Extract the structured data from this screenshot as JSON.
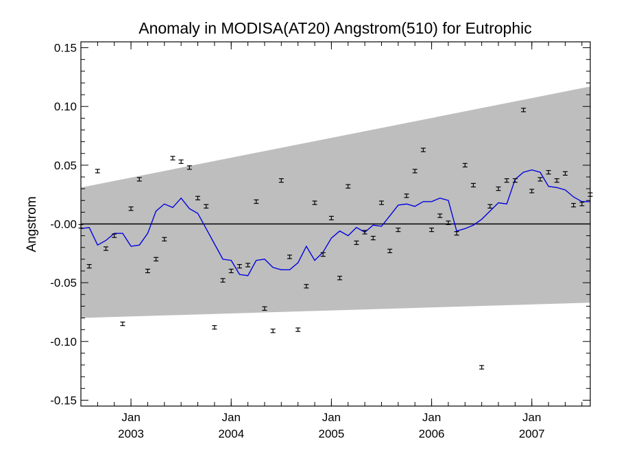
{
  "chart_data": {
    "type": "scatter",
    "title": "Anomaly in MODISA(AT20) Angstrom(510) for Eutrophic",
    "xlabel": "",
    "ylabel": "Angstrom",
    "xlim": [
      "2002-07",
      "2007-08"
    ],
    "ylim": [
      -0.155,
      0.155
    ],
    "yticks": [
      {
        "value": 0.15,
        "label": "0.15"
      },
      {
        "value": 0.1,
        "label": "0.10"
      },
      {
        "value": 0.05,
        "label": "0.05"
      },
      {
        "value": 0.0,
        "label": "-0.00"
      },
      {
        "value": -0.05,
        "label": "-0.05"
      },
      {
        "value": -0.1,
        "label": "-0.10"
      },
      {
        "value": -0.15,
        "label": "-0.15"
      }
    ],
    "xticks": [
      {
        "date": "2003-01",
        "month_label": "Jan",
        "year_label": "2003"
      },
      {
        "date": "2004-01",
        "month_label": "Jan",
        "year_label": "2004"
      },
      {
        "date": "2005-01",
        "month_label": "Jan",
        "year_label": "2005"
      },
      {
        "date": "2006-01",
        "month_label": "Jan",
        "year_label": "2006"
      },
      {
        "date": "2007-01",
        "month_label": "Jan",
        "year_label": "2007"
      }
    ],
    "envelope": {
      "upper": [
        {
          "date": "2002-07",
          "y": 0.031
        },
        {
          "date": "2007-08",
          "y": 0.117
        }
      ],
      "lower": [
        {
          "date": "2002-07",
          "y": -0.08
        },
        {
          "date": "2007-08",
          "y": -0.067
        }
      ],
      "color": "#bebebe"
    },
    "zero_line": {
      "y": 0.0,
      "color": "#000000"
    },
    "series": [
      {
        "kind": "points",
        "color": "#000000",
        "error": 0.0015,
        "points": [
          {
            "date": "2002-07",
            "y": -0.002
          },
          {
            "date": "2002-08",
            "y": -0.036
          },
          {
            "date": "2002-09",
            "y": 0.045
          },
          {
            "date": "2002-10",
            "y": -0.021
          },
          {
            "date": "2002-11",
            "y": -0.01
          },
          {
            "date": "2002-12",
            "y": -0.085
          },
          {
            "date": "2003-01",
            "y": 0.013
          },
          {
            "date": "2003-02",
            "y": 0.038
          },
          {
            "date": "2003-03",
            "y": -0.04
          },
          {
            "date": "2003-04",
            "y": -0.03
          },
          {
            "date": "2003-05",
            "y": -0.013
          },
          {
            "date": "2003-06",
            "y": 0.056
          },
          {
            "date": "2003-07",
            "y": 0.053
          },
          {
            "date": "2003-08",
            "y": 0.048
          },
          {
            "date": "2003-09",
            "y": 0.022
          },
          {
            "date": "2003-10",
            "y": 0.015
          },
          {
            "date": "2003-11",
            "y": -0.088
          },
          {
            "date": "2003-12",
            "y": -0.048
          },
          {
            "date": "2004-01",
            "y": -0.04
          },
          {
            "date": "2004-02",
            "y": -0.036
          },
          {
            "date": "2004-03",
            "y": -0.035
          },
          {
            "date": "2004-04",
            "y": 0.019
          },
          {
            "date": "2004-05",
            "y": -0.072
          },
          {
            "date": "2004-06",
            "y": -0.091
          },
          {
            "date": "2004-07",
            "y": 0.037
          },
          {
            "date": "2004-08",
            "y": -0.028
          },
          {
            "date": "2004-09",
            "y": -0.09
          },
          {
            "date": "2004-10",
            "y": -0.053
          },
          {
            "date": "2004-11",
            "y": 0.018
          },
          {
            "date": "2004-12",
            "y": -0.026
          },
          {
            "date": "2005-01",
            "y": 0.005
          },
          {
            "date": "2005-02",
            "y": -0.046
          },
          {
            "date": "2005-03",
            "y": 0.032
          },
          {
            "date": "2005-04",
            "y": -0.016
          },
          {
            "date": "2005-05",
            "y": -0.007
          },
          {
            "date": "2005-06",
            "y": -0.012
          },
          {
            "date": "2005-07",
            "y": 0.018
          },
          {
            "date": "2005-08",
            "y": -0.023
          },
          {
            "date": "2005-09",
            "y": -0.005
          },
          {
            "date": "2005-10",
            "y": 0.024
          },
          {
            "date": "2005-11",
            "y": 0.045
          },
          {
            "date": "2005-12",
            "y": 0.063
          },
          {
            "date": "2006-01",
            "y": -0.005
          },
          {
            "date": "2006-02",
            "y": 0.007
          },
          {
            "date": "2006-03",
            "y": 0.001
          },
          {
            "date": "2006-04",
            "y": -0.008
          },
          {
            "date": "2006-05",
            "y": 0.05
          },
          {
            "date": "2006-06",
            "y": 0.033
          },
          {
            "date": "2006-07",
            "y": -0.122
          },
          {
            "date": "2006-08",
            "y": 0.015
          },
          {
            "date": "2006-09",
            "y": 0.03
          },
          {
            "date": "2006-10",
            "y": 0.037
          },
          {
            "date": "2006-11",
            "y": 0.037
          },
          {
            "date": "2006-12",
            "y": 0.097
          },
          {
            "date": "2007-01",
            "y": 0.028
          },
          {
            "date": "2007-02",
            "y": 0.038
          },
          {
            "date": "2007-03",
            "y": 0.044
          },
          {
            "date": "2007-04",
            "y": 0.037
          },
          {
            "date": "2007-05",
            "y": 0.043
          },
          {
            "date": "2007-06",
            "y": 0.016
          },
          {
            "date": "2007-07",
            "y": 0.017
          },
          {
            "date": "2007-08",
            "y": 0.025
          }
        ]
      },
      {
        "kind": "line",
        "color": "#0000e0",
        "points": [
          {
            "date": "2002-07",
            "y": -0.004
          },
          {
            "date": "2002-08",
            "y": -0.003
          },
          {
            "date": "2002-09",
            "y": -0.018
          },
          {
            "date": "2002-10",
            "y": -0.014
          },
          {
            "date": "2002-11",
            "y": -0.008
          },
          {
            "date": "2002-12",
            "y": -0.008
          },
          {
            "date": "2003-01",
            "y": -0.019
          },
          {
            "date": "2003-02",
            "y": -0.018
          },
          {
            "date": "2003-03",
            "y": -0.008
          },
          {
            "date": "2003-04",
            "y": 0.011
          },
          {
            "date": "2003-05",
            "y": 0.017
          },
          {
            "date": "2003-06",
            "y": 0.014
          },
          {
            "date": "2003-07",
            "y": 0.022
          },
          {
            "date": "2003-08",
            "y": 0.013
          },
          {
            "date": "2003-09",
            "y": 0.009
          },
          {
            "date": "2003-10",
            "y": -0.004
          },
          {
            "date": "2003-11",
            "y": -0.017
          },
          {
            "date": "2003-12",
            "y": -0.03
          },
          {
            "date": "2004-01",
            "y": -0.031
          },
          {
            "date": "2004-02",
            "y": -0.043
          },
          {
            "date": "2004-03",
            "y": -0.044
          },
          {
            "date": "2004-04",
            "y": -0.031
          },
          {
            "date": "2004-05",
            "y": -0.03
          },
          {
            "date": "2004-06",
            "y": -0.037
          },
          {
            "date": "2004-07",
            "y": -0.039
          },
          {
            "date": "2004-08",
            "y": -0.039
          },
          {
            "date": "2004-09",
            "y": -0.033
          },
          {
            "date": "2004-10",
            "y": -0.019
          },
          {
            "date": "2004-11",
            "y": -0.031
          },
          {
            "date": "2004-12",
            "y": -0.024
          },
          {
            "date": "2005-01",
            "y": -0.012
          },
          {
            "date": "2005-02",
            "y": -0.006
          },
          {
            "date": "2005-03",
            "y": -0.01
          },
          {
            "date": "2005-04",
            "y": -0.003
          },
          {
            "date": "2005-05",
            "y": -0.007
          },
          {
            "date": "2005-06",
            "y": -0.001
          },
          {
            "date": "2005-07",
            "y": -0.002
          },
          {
            "date": "2005-08",
            "y": 0.007
          },
          {
            "date": "2005-09",
            "y": 0.016
          },
          {
            "date": "2005-10",
            "y": 0.017
          },
          {
            "date": "2005-11",
            "y": 0.015
          },
          {
            "date": "2005-12",
            "y": 0.019
          },
          {
            "date": "2006-01",
            "y": 0.019
          },
          {
            "date": "2006-02",
            "y": 0.022
          },
          {
            "date": "2006-03",
            "y": 0.02
          },
          {
            "date": "2006-04",
            "y": -0.006
          },
          {
            "date": "2006-05",
            "y": -0.004
          },
          {
            "date": "2006-06",
            "y": -0.001
          },
          {
            "date": "2006-07",
            "y": 0.004
          },
          {
            "date": "2006-08",
            "y": 0.011
          },
          {
            "date": "2006-09",
            "y": 0.018
          },
          {
            "date": "2006-10",
            "y": 0.017
          },
          {
            "date": "2006-11",
            "y": 0.038
          },
          {
            "date": "2006-12",
            "y": 0.044
          },
          {
            "date": "2007-01",
            "y": 0.046
          },
          {
            "date": "2007-02",
            "y": 0.044
          },
          {
            "date": "2007-03",
            "y": 0.032
          },
          {
            "date": "2007-04",
            "y": 0.031
          },
          {
            "date": "2007-05",
            "y": 0.029
          },
          {
            "date": "2007-06",
            "y": 0.023
          },
          {
            "date": "2007-07",
            "y": 0.019
          },
          {
            "date": "2007-08",
            "y": 0.019
          }
        ]
      }
    ]
  }
}
